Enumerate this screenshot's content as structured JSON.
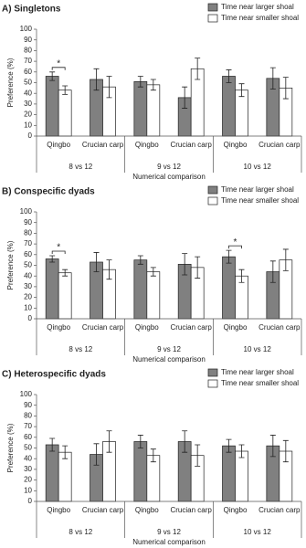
{
  "chart_data": [
    {
      "type": "bar",
      "title": "A) Singletons",
      "categories": [
        "Qingbo",
        "Crucian carp",
        "Qingbo",
        "Crucian carp",
        "Qingbo",
        "Crucian carp"
      ],
      "groups": [
        "8 vs 12",
        "9 vs 12",
        "10 vs 12"
      ],
      "xlabel": "Numerical comparison",
      "ylabel": "Preference (%)",
      "ylim": [
        0,
        100
      ],
      "yticks": [
        0,
        10,
        20,
        30,
        40,
        50,
        60,
        70,
        80,
        90,
        100
      ],
      "legend": "top-right",
      "series": [
        {
          "name": "Time near larger shoal",
          "color": "#808080",
          "values": [
            56,
            53,
            51,
            36,
            56,
            54
          ],
          "errors": [
            4,
            10,
            5,
            10,
            6,
            10
          ]
        },
        {
          "name": "Time near smaller shoal",
          "color": "#ffffff",
          "values": [
            43,
            46,
            48,
            63,
            43,
            45
          ],
          "errors": [
            4,
            10,
            5,
            10,
            6,
            10
          ]
        }
      ],
      "significance": [
        "*",
        null,
        null,
        null,
        null,
        null
      ]
    },
    {
      "type": "bar",
      "title": "B) Conspecific dyads",
      "categories": [
        "Qingbo",
        "Crucian carp",
        "Qingbo",
        "Crucian carp",
        "Qingbo",
        "Crucian carp"
      ],
      "groups": [
        "8 vs 12",
        "9 vs 12",
        "10 vs 12"
      ],
      "xlabel": "Numerical comparison",
      "ylabel": "Preference (%)",
      "ylim": [
        0,
        100
      ],
      "yticks": [
        0,
        10,
        20,
        30,
        40,
        50,
        60,
        70,
        80,
        90,
        100
      ],
      "legend": "top-right",
      "series": [
        {
          "name": "Time near larger shoal",
          "color": "#808080",
          "values": [
            56,
            53,
            55,
            51,
            58,
            44
          ],
          "errors": [
            3,
            9,
            4,
            10,
            6,
            10
          ]
        },
        {
          "name": "Time near smaller shoal",
          "color": "#ffffff",
          "values": [
            43,
            46,
            44,
            48,
            40,
            55
          ],
          "errors": [
            3,
            9,
            4,
            10,
            6,
            10
          ]
        }
      ],
      "significance": [
        "*",
        null,
        null,
        null,
        "*",
        null
      ]
    },
    {
      "type": "bar",
      "title": "C) Heterospecific dyads",
      "categories": [
        "Qingbo",
        "Crucian carp",
        "Qingbo",
        "Crucian carp",
        "Qingbo",
        "Crucian carp"
      ],
      "groups": [
        "8 vs 12",
        "9 vs 12",
        "10 vs 12"
      ],
      "xlabel": "Numerical comparison",
      "ylabel": "Preference (%)",
      "ylim": [
        0,
        100
      ],
      "yticks": [
        0,
        10,
        20,
        30,
        40,
        50,
        60,
        70,
        80,
        90,
        100
      ],
      "legend": "top-right",
      "series": [
        {
          "name": "Time near larger shoal",
          "color": "#808080",
          "values": [
            53,
            44,
            56,
            56,
            52,
            52
          ],
          "errors": [
            6,
            10,
            6,
            10,
            6,
            10
          ]
        },
        {
          "name": "Time near smaller shoal",
          "color": "#ffffff",
          "values": [
            46,
            56,
            43,
            43,
            47,
            47
          ],
          "errors": [
            6,
            10,
            6,
            10,
            6,
            10
          ]
        }
      ]
    }
  ]
}
